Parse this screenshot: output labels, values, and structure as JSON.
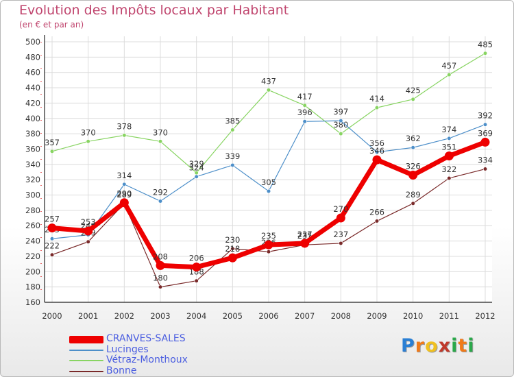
{
  "header": {
    "title": "Evolution des Impôts locaux par Habitant",
    "subtitle": "(en € et par an)"
  },
  "logo": {
    "letters": [
      "P",
      "r",
      "o",
      "x",
      "i",
      "t",
      "i"
    ],
    "colors": [
      "#2a7fd4",
      "#f07a1a",
      "#f0c020",
      "#c0392b",
      "#2aa84a",
      "#f07a1a",
      "#2aa84a"
    ]
  },
  "chart_data": {
    "type": "line",
    "title": "Evolution des Impôts locaux par Habitant",
    "subtitle": "(en € et par an)",
    "xlabel": "",
    "ylabel": "",
    "ylim": [
      160,
      500
    ],
    "y_ticks": [
      160,
      180,
      200,
      220,
      240,
      260,
      280,
      300,
      320,
      340,
      360,
      380,
      400,
      420,
      440,
      460,
      480,
      500
    ],
    "grid": true,
    "legend_position": "bottom-left",
    "categories": [
      "2000",
      "2001",
      "2002",
      "2003",
      "2004",
      "2005",
      "2006",
      "2007",
      "2008",
      "2009",
      "2010",
      "2011",
      "2012"
    ],
    "series": [
      {
        "name": "Vétraz-Monthoux",
        "color": "#88d462",
        "width": 1.2,
        "marker": 2.8,
        "values": [
          357,
          370,
          378,
          370,
          329,
          385,
          437,
          417,
          380,
          414,
          425,
          457,
          485
        ]
      },
      {
        "name": "Lucinges",
        "color": "#4d8fc9",
        "width": 1.2,
        "marker": 2.8,
        "values": [
          243,
          248,
          314,
          292,
          324,
          339,
          305,
          396,
          397,
          356,
          362,
          374,
          392
        ]
      },
      {
        "name": "Bonne",
        "color": "#7a2a2a",
        "width": 1.2,
        "marker": 2.8,
        "values": [
          222,
          239,
          289,
          180,
          188,
          230,
          226,
          235,
          237,
          266,
          289,
          322,
          334
        ]
      },
      {
        "name": "CRANVES-SALES",
        "color": "#ee0000",
        "width": 7,
        "marker": 6.5,
        "values": [
          257,
          253,
          290,
          208,
          206,
          218,
          235,
          237,
          270,
          346,
          326,
          351,
          369
        ]
      }
    ],
    "legend_order": [
      "CRANVES-SALES",
      "Lucinges",
      "Vétraz-Monthoux",
      "Bonne"
    ]
  }
}
